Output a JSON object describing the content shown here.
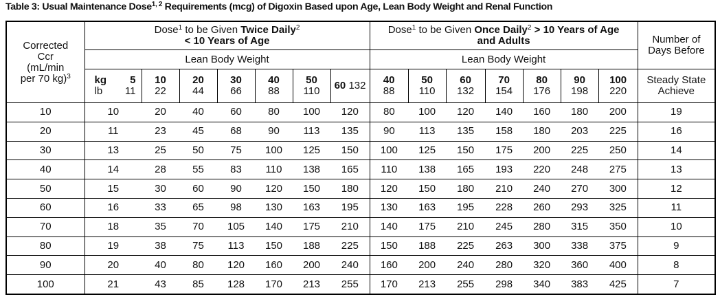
{
  "title": {
    "text": "Table 3: Usual Maintenance Dose",
    "sup": "1, 2",
    "rest": " Requirements (mcg) of Digoxin Based upon Age, Lean Body Weight and Renal Function"
  },
  "header": {
    "ccr": {
      "lines": [
        "Corrected",
        "Ccr",
        "(mL/min",
        "per 70 kg)"
      ],
      "sup": "3"
    },
    "twice": {
      "dose": "Dose",
      "sup1": "1",
      "mid": " to be Given ",
      "bold": "Twice Daily",
      "sup2": "2",
      "line2": "< 10 Years of Age"
    },
    "once": {
      "dose": "Dose",
      "sup1": "1",
      "mid": " to be Given ",
      "bold": "Once Daily",
      "sup2": "2",
      "rest": " > 10 Years of Age",
      "line2": "and Adults"
    },
    "days": {
      "lines": [
        "Number of",
        "Days Before"
      ]
    },
    "lean_body_weight": [
      "Lean Body Weight",
      "Lean Body Weight"
    ],
    "kg_label": "kg",
    "lb_label": "lb",
    "twice_weights": [
      {
        "kg": 5,
        "lb": 11
      },
      {
        "kg": 10,
        "lb": 22
      },
      {
        "kg": 20,
        "lb": 44
      },
      {
        "kg": 30,
        "lb": 66
      },
      {
        "kg": 40,
        "lb": 88
      },
      {
        "kg": 50,
        "lb": 110
      },
      {
        "kg": 60,
        "lb": 132
      }
    ],
    "once_weights": [
      {
        "kg": 40,
        "lb": 88
      },
      {
        "kg": 50,
        "lb": 110
      },
      {
        "kg": 60,
        "lb": 132
      },
      {
        "kg": 70,
        "lb": 154
      },
      {
        "kg": 80,
        "lb": 176
      },
      {
        "kg": 90,
        "lb": 198
      },
      {
        "kg": 100,
        "lb": 220
      }
    ],
    "steady": {
      "lines": [
        "Steady State",
        "Achieve"
      ]
    }
  },
  "rows": [
    [
      10,
      10,
      20,
      40,
      60,
      80,
      100,
      120,
      80,
      100,
      120,
      140,
      160,
      180,
      200,
      19
    ],
    [
      20,
      11,
      23,
      45,
      68,
      90,
      113,
      135,
      90,
      113,
      135,
      158,
      180,
      203,
      225,
      16
    ],
    [
      30,
      13,
      25,
      50,
      75,
      100,
      125,
      150,
      100,
      125,
      150,
      175,
      200,
      225,
      250,
      14
    ],
    [
      40,
      14,
      28,
      55,
      83,
      110,
      138,
      165,
      110,
      138,
      165,
      193,
      220,
      248,
      275,
      13
    ],
    [
      50,
      15,
      30,
      60,
      90,
      120,
      150,
      180,
      120,
      150,
      180,
      210,
      240,
      270,
      300,
      12
    ],
    [
      60,
      16,
      33,
      65,
      98,
      130,
      163,
      195,
      130,
      163,
      195,
      228,
      260,
      293,
      325,
      11
    ],
    [
      70,
      18,
      35,
      70,
      105,
      140,
      175,
      210,
      140,
      175,
      210,
      245,
      280,
      315,
      350,
      10
    ],
    [
      80,
      19,
      38,
      75,
      113,
      150,
      188,
      225,
      150,
      188,
      225,
      263,
      300,
      338,
      375,
      9
    ],
    [
      90,
      20,
      40,
      80,
      120,
      160,
      200,
      240,
      160,
      200,
      240,
      280,
      320,
      360,
      400,
      8
    ],
    [
      100,
      21,
      43,
      85,
      128,
      170,
      213,
      255,
      170,
      213,
      255,
      298,
      340,
      383,
      425,
      7
    ]
  ]
}
